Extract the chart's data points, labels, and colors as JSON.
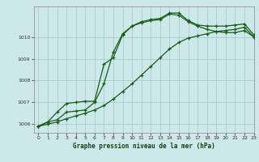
{
  "title": "Graphe pression niveau de la mer (hPa)",
  "bg_color": "#cce8e8",
  "grid_color": "#aacccc",
  "line_color": "#1a5c1a",
  "xlim": [
    -0.5,
    23
  ],
  "ylim": [
    1005.6,
    1011.4
  ],
  "yticks": [
    1006,
    1007,
    1008,
    1009,
    1010
  ],
  "xticks": [
    0,
    1,
    2,
    3,
    4,
    5,
    6,
    7,
    8,
    9,
    10,
    11,
    12,
    13,
    14,
    15,
    16,
    17,
    18,
    19,
    20,
    21,
    22,
    23
  ],
  "line1_x": [
    0,
    1,
    2,
    3,
    4,
    5,
    6,
    7,
    8,
    9,
    10,
    11,
    12,
    13,
    14,
    15,
    16,
    17,
    18,
    19,
    20,
    21,
    22,
    23
  ],
  "line1_y": [
    1005.9,
    1006.1,
    1006.2,
    1006.55,
    1006.6,
    1006.65,
    1007.0,
    1007.85,
    1009.3,
    1010.15,
    1010.5,
    1010.7,
    1010.8,
    1010.85,
    1011.1,
    1011.1,
    1010.75,
    1010.55,
    1010.5,
    1010.5,
    1010.5,
    1010.55,
    1010.6,
    1010.1
  ],
  "line2_x": [
    0,
    1,
    2,
    3,
    4,
    5,
    6,
    7,
    8,
    9,
    10,
    11,
    12,
    13,
    14,
    15,
    16,
    17,
    18,
    19,
    20,
    21,
    22,
    23
  ],
  "line2_y": [
    1005.9,
    1006.1,
    1006.55,
    1006.95,
    1007.0,
    1007.05,
    1007.05,
    1008.75,
    1009.05,
    1010.1,
    1010.5,
    1010.65,
    1010.75,
    1010.8,
    1011.05,
    1011.0,
    1010.7,
    1010.5,
    1010.35,
    1010.25,
    1010.2,
    1010.2,
    1010.3,
    1010.0
  ],
  "line3_x": [
    0,
    1,
    2,
    3,
    4,
    5,
    6,
    7,
    8,
    9,
    10,
    11,
    12,
    13,
    14,
    15,
    16,
    17,
    18,
    19,
    20,
    21,
    22,
    23
  ],
  "line3_y": [
    1005.9,
    1006.0,
    1006.1,
    1006.25,
    1006.38,
    1006.5,
    1006.65,
    1006.85,
    1007.15,
    1007.5,
    1007.85,
    1008.25,
    1008.65,
    1009.05,
    1009.45,
    1009.75,
    1009.95,
    1010.05,
    1010.15,
    1010.25,
    1010.3,
    1010.35,
    1010.45,
    1010.0
  ]
}
